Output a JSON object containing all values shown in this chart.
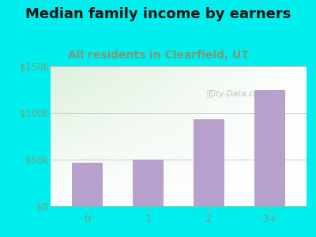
{
  "title": "Median family income by earners",
  "subtitle": "All residents in Clearfield, UT",
  "categories": [
    "0",
    "1",
    "2",
    "3+"
  ],
  "values": [
    47000,
    50000,
    93000,
    125000
  ],
  "bar_color": "#b8a0cc",
  "title_fontsize": 13,
  "subtitle_fontsize": 10,
  "title_color": "#111111",
  "subtitle_color": "#7a9a7a",
  "bg_outer": "#00EEEE",
  "ylim": [
    0,
    150000
  ],
  "yticks": [
    0,
    50000,
    100000,
    150000
  ],
  "ytick_labels": [
    "$0",
    "$50k",
    "$100k",
    "$150k"
  ],
  "watermark": "City-Data.com",
  "tick_color": "#7a9a7a",
  "grid_color": "#cccccc"
}
